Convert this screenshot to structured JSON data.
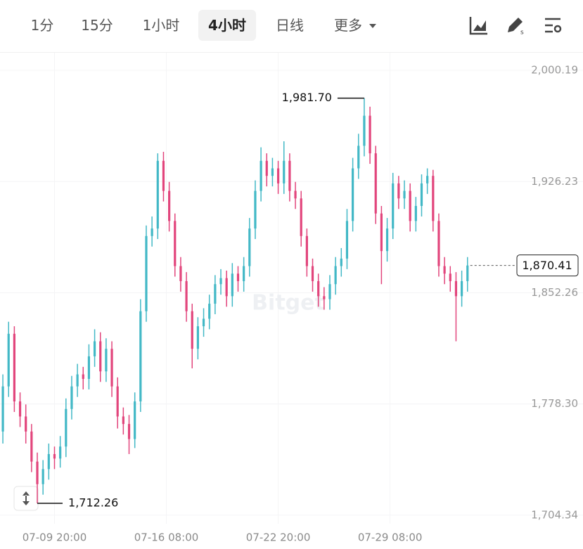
{
  "toolbar": {
    "tabs": [
      "1分",
      "15分",
      "1小时",
      "4小时",
      "日线",
      "更多"
    ]
  },
  "chart_data": {
    "type": "candlestick",
    "watermark": "Bitget",
    "up_color": "#42b8c6",
    "down_color": "#e2457c",
    "grid": true,
    "xlim": [
      -0.5,
      89
    ],
    "xticks": [
      {
        "value": 9,
        "label": "07-09 20:00"
      },
      {
        "value": 28.5,
        "label": "07-16 08:00"
      },
      {
        "value": 48,
        "label": "07-22 20:00"
      },
      {
        "value": 67.5,
        "label": "07-29 08:00"
      }
    ],
    "ylim": [
      1698.7,
      2011.9
    ],
    "yticks": [
      {
        "value": 1704.34,
        "label": "1,704.34"
      },
      {
        "value": 1778.3,
        "label": "1,778.30"
      },
      {
        "value": 1852.26,
        "label": "1,852.26"
      },
      {
        "value": 1926.23,
        "label": "1,926.23"
      },
      {
        "value": 2000.19,
        "label": "2,000.19"
      }
    ],
    "max_marker": {
      "value": 1981.7,
      "label": "1,981.70"
    },
    "min_marker": {
      "value": 1712.26,
      "label": "1,712.26"
    },
    "last_price": {
      "value": 1870.41,
      "label": "1,870.41"
    },
    "open": [
      1760,
      1790,
      1825,
      1780,
      1770,
      1760,
      1740,
      1725,
      1735,
      1745,
      1742,
      1750,
      1775,
      1790,
      1798,
      1795,
      1810,
      1820,
      1800,
      1815,
      1790,
      1770,
      1765,
      1755,
      1780,
      1840,
      1890,
      1895,
      1940,
      1920,
      1900,
      1870,
      1860,
      1840,
      1815,
      1830,
      1835,
      1845,
      1858,
      1862,
      1850,
      1865,
      1860,
      1870,
      1895,
      1920,
      1940,
      1930,
      1935,
      1925,
      1940,
      1920,
      1915,
      1890,
      1870,
      1860,
      1850,
      1848,
      1858,
      1870,
      1875,
      1900,
      1935,
      1950,
      1970,
      1945,
      1905,
      1880,
      1895,
      1925,
      1915,
      1920,
      1900,
      1910,
      1925,
      1930,
      1900,
      1870,
      1865,
      1860,
      1850,
      1860
    ],
    "high": [
      1798,
      1833,
      1830,
      1786,
      1778,
      1765,
      1746,
      1741,
      1752,
      1750,
      1757,
      1782,
      1797,
      1805,
      1803,
      1818,
      1828,
      1826,
      1822,
      1820,
      1796,
      1776,
      1771,
      1786,
      1848,
      1897,
      1903,
      1945,
      1946,
      1926,
      1905,
      1876,
      1866,
      1845,
      1836,
      1842,
      1851,
      1864,
      1868,
      1867,
      1872,
      1870,
      1876,
      1902,
      1927,
      1949,
      1945,
      1942,
      1940,
      1953,
      1945,
      1926,
      1920,
      1895,
      1875,
      1865,
      1856,
      1864,
      1876,
      1882,
      1908,
      1942,
      1958,
      1981.7,
      1976,
      1950,
      1910,
      1902,
      1932,
      1930,
      1927,
      1925,
      1916,
      1931,
      1935,
      1934,
      1905,
      1876,
      1870,
      1866,
      1867,
      1876
    ],
    "low": [
      1752,
      1783,
      1773,
      1763,
      1752,
      1733,
      1712.26,
      1718,
      1728,
      1735,
      1736,
      1743,
      1768,
      1783,
      1788,
      1788,
      1803,
      1793,
      1793,
      1783,
      1762,
      1758,
      1745,
      1749,
      1773,
      1833,
      1883,
      1888,
      1913,
      1893,
      1863,
      1853,
      1833,
      1802,
      1808,
      1823,
      1828,
      1838,
      1851,
      1843,
      1843,
      1853,
      1853,
      1863,
      1888,
      1913,
      1923,
      1923,
      1918,
      1918,
      1913,
      1908,
      1883,
      1863,
      1853,
      1843,
      1841,
      1841,
      1851,
      1863,
      1868,
      1893,
      1928,
      1943,
      1938,
      1898,
      1858,
      1873,
      1888,
      1908,
      1908,
      1893,
      1893,
      1903,
      1918,
      1893,
      1863,
      1858,
      1853,
      1820,
      1843,
      1853
    ],
    "close": [
      1790,
      1825,
      1780,
      1770,
      1760,
      1740,
      1725,
      1735,
      1745,
      1742,
      1750,
      1775,
      1790,
      1798,
      1795,
      1810,
      1820,
      1800,
      1815,
      1790,
      1770,
      1765,
      1755,
      1780,
      1840,
      1890,
      1895,
      1940,
      1920,
      1900,
      1870,
      1860,
      1840,
      1815,
      1830,
      1835,
      1845,
      1858,
      1862,
      1850,
      1865,
      1860,
      1870,
      1895,
      1920,
      1940,
      1930,
      1935,
      1925,
      1940,
      1920,
      1915,
      1890,
      1870,
      1860,
      1850,
      1848,
      1858,
      1870,
      1875,
      1900,
      1935,
      1950,
      1970,
      1945,
      1905,
      1880,
      1895,
      1925,
      1915,
      1920,
      1900,
      1910,
      1925,
      1930,
      1900,
      1870,
      1865,
      1860,
      1850,
      1860,
      1870.41
    ]
  }
}
